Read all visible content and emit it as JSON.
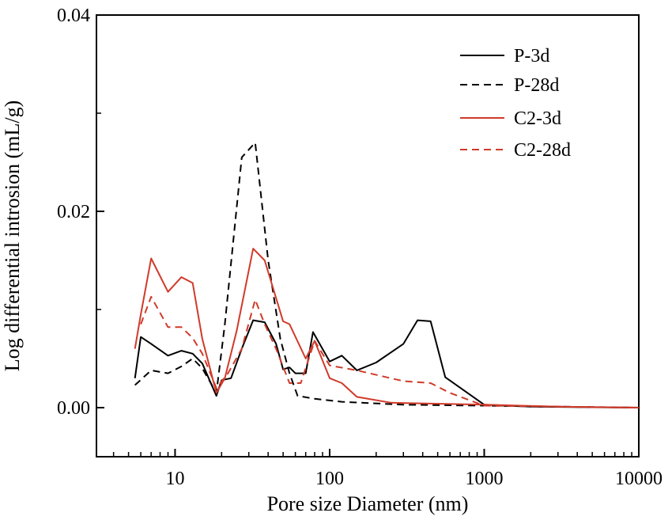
{
  "chart_data": {
    "type": "line",
    "title": "",
    "xlabel": "Pore size Diameter (nm)",
    "ylabel": "Log differential introsion (mL/g)",
    "xscale": "log",
    "xlim": [
      3.1,
      10000
    ],
    "ylim": [
      -0.005,
      0.04
    ],
    "xticks": [
      10,
      100,
      1000,
      10000
    ],
    "xtick_labels": [
      "10",
      "100",
      "1000",
      "10000"
    ],
    "yticks": [
      0.0,
      0.02,
      0.04
    ],
    "ytick_labels": [
      "0.00",
      "0.02",
      "0.04"
    ],
    "grid": false,
    "legend_position": "top-right",
    "series": [
      {
        "name": "P-3d",
        "color": "#000000",
        "dash": "solid",
        "points": [
          [
            5.5,
            0.003
          ],
          [
            6,
            0.0072
          ],
          [
            7,
            0.0065
          ],
          [
            9,
            0.0053
          ],
          [
            11,
            0.0058
          ],
          [
            13,
            0.0055
          ],
          [
            15,
            0.0045
          ],
          [
            18.5,
            0.0012
          ],
          [
            20,
            0.0028
          ],
          [
            23,
            0.003
          ],
          [
            27,
            0.006
          ],
          [
            32,
            0.0089
          ],
          [
            38,
            0.0087
          ],
          [
            45,
            0.0065
          ],
          [
            50,
            0.0039
          ],
          [
            55,
            0.0041
          ],
          [
            60,
            0.0035
          ],
          [
            70,
            0.0035
          ],
          [
            78,
            0.0077
          ],
          [
            100,
            0.0047
          ],
          [
            120,
            0.0053
          ],
          [
            150,
            0.0038
          ],
          [
            200,
            0.0046
          ],
          [
            300,
            0.0065
          ],
          [
            370,
            0.0089
          ],
          [
            450,
            0.0088
          ],
          [
            560,
            0.0031
          ],
          [
            1000,
            0.0003
          ],
          [
            2000,
            0.0001
          ],
          [
            10000,
            0.0
          ]
        ]
      },
      {
        "name": "P-28d",
        "color": "#000000",
        "dash": "dashed",
        "points": [
          [
            5.5,
            0.0023
          ],
          [
            7,
            0.0038
          ],
          [
            9,
            0.0035
          ],
          [
            11,
            0.0042
          ],
          [
            13,
            0.005
          ],
          [
            15,
            0.004
          ],
          [
            18.5,
            0.0015
          ],
          [
            21,
            0.0085
          ],
          [
            27,
            0.0255
          ],
          [
            33,
            0.027
          ],
          [
            40,
            0.015
          ],
          [
            48,
            0.007
          ],
          [
            55,
            0.0035
          ],
          [
            62,
            0.0012
          ],
          [
            80,
            0.0009
          ],
          [
            120,
            0.0006
          ],
          [
            300,
            0.0003
          ],
          [
            1000,
            0.0002
          ],
          [
            10000,
            0.0
          ]
        ]
      },
      {
        "name": "C2-3d",
        "color": "#d03a2a",
        "dash": "solid",
        "points": [
          [
            5.5,
            0.006
          ],
          [
            6,
            0.0095
          ],
          [
            7,
            0.0152
          ],
          [
            9,
            0.0118
          ],
          [
            11,
            0.0133
          ],
          [
            13,
            0.0127
          ],
          [
            15,
            0.007
          ],
          [
            18.5,
            0.0015
          ],
          [
            21,
            0.003
          ],
          [
            25,
            0.0078
          ],
          [
            32,
            0.0162
          ],
          [
            38,
            0.015
          ],
          [
            50,
            0.0088
          ],
          [
            55,
            0.0085
          ],
          [
            70,
            0.005
          ],
          [
            80,
            0.0068
          ],
          [
            100,
            0.003
          ],
          [
            120,
            0.0025
          ],
          [
            150,
            0.0011
          ],
          [
            250,
            0.0005
          ],
          [
            1000,
            0.0003
          ],
          [
            3000,
            0.0001
          ],
          [
            10000,
            0.0
          ]
        ]
      },
      {
        "name": "C2-28d",
        "color": "#d03a2a",
        "dash": "dashed",
        "points": [
          [
            6,
            0.0085
          ],
          [
            7,
            0.0113
          ],
          [
            9,
            0.0082
          ],
          [
            11,
            0.0082
          ],
          [
            13,
            0.0071
          ],
          [
            15,
            0.0055
          ],
          [
            18.5,
            0.002
          ],
          [
            22,
            0.0035
          ],
          [
            27,
            0.006
          ],
          [
            33,
            0.011
          ],
          [
            38,
            0.0085
          ],
          [
            45,
            0.006
          ],
          [
            55,
            0.0025
          ],
          [
            65,
            0.0025
          ],
          [
            80,
            0.0068
          ],
          [
            100,
            0.0043
          ],
          [
            150,
            0.0038
          ],
          [
            300,
            0.0027
          ],
          [
            450,
            0.0025
          ],
          [
            600,
            0.0015
          ],
          [
            1000,
            0.0002
          ],
          [
            10000,
            0.0
          ]
        ]
      }
    ]
  }
}
